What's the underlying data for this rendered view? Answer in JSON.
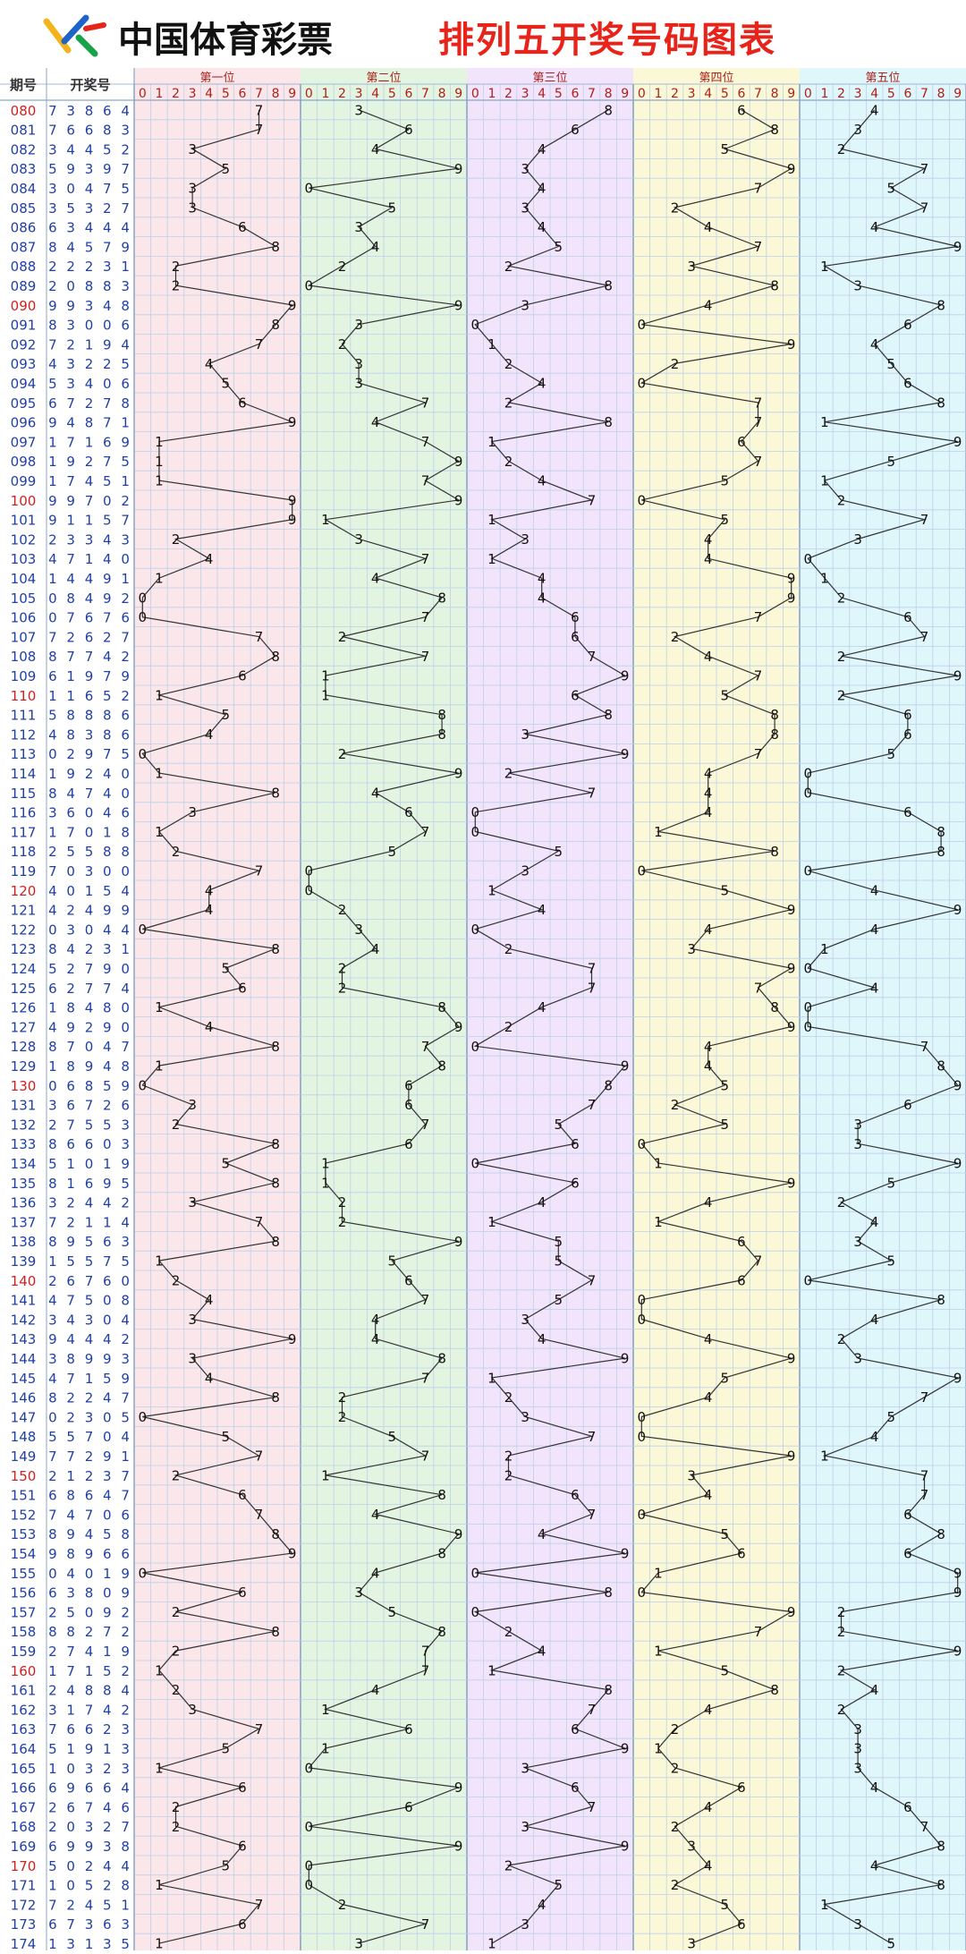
{
  "header": {
    "brand": "中国体育彩票",
    "title": "排列五开奖号码图表"
  },
  "colors": {
    "title_red": "#e8231a",
    "line": "#333333",
    "issue_blue": "#1f3fa6",
    "issue_red": "#d21f1f",
    "grid": "#bcd0e8",
    "section_bgs": [
      "#fbe7ea",
      "#e3f5e1",
      "#f1e4fb",
      "#fbf8d8",
      "#dff6fb"
    ]
  },
  "chart_data": {
    "type": "line",
    "title": "排列五开奖号码图表",
    "col_issue": "期号",
    "col_numbers": "开奖号",
    "digit_header": [
      "0",
      "1",
      "2",
      "3",
      "4",
      "5",
      "6",
      "7",
      "8",
      "9"
    ],
    "series": [
      {
        "name": "第一位"
      },
      {
        "name": "第二位"
      },
      {
        "name": "第三位"
      },
      {
        "name": "第四位"
      },
      {
        "name": "第五位"
      }
    ],
    "issues": [
      "080",
      "081",
      "082",
      "083",
      "084",
      "085",
      "086",
      "087",
      "088",
      "089",
      "090",
      "091",
      "092",
      "093",
      "094",
      "095",
      "096",
      "097",
      "098",
      "099",
      "100",
      "101",
      "102",
      "103",
      "104",
      "105",
      "106",
      "107",
      "108",
      "109",
      "110",
      "111",
      "112",
      "113",
      "114",
      "115",
      "116",
      "117",
      "118",
      "119",
      "120",
      "121",
      "122",
      "123",
      "124",
      "125",
      "126",
      "127",
      "128",
      "129",
      "130",
      "131",
      "132",
      "133",
      "134",
      "135",
      "136",
      "137",
      "138",
      "139",
      "140",
      "141",
      "142",
      "143",
      "144",
      "145",
      "146",
      "147",
      "148",
      "149",
      "150",
      "151",
      "152",
      "153",
      "154",
      "155",
      "156",
      "157",
      "158",
      "159",
      "160",
      "161",
      "162",
      "163",
      "164",
      "165",
      "166",
      "167",
      "168",
      "169",
      "170",
      "171",
      "172",
      "173",
      "174"
    ],
    "draws": [
      "73864",
      "76683",
      "34452",
      "59397",
      "30475",
      "35327",
      "63444",
      "84579",
      "22231",
      "20883",
      "99348",
      "83006",
      "72194",
      "43225",
      "53406",
      "67278",
      "94871",
      "17169",
      "19275",
      "17451",
      "99702",
      "91157",
      "23343",
      "47140",
      "14491",
      "08492",
      "07676",
      "72627",
      "87742",
      "61979",
      "11652",
      "58886",
      "48386",
      "02975",
      "19240",
      "84740",
      "36046",
      "17018",
      "25588",
      "70300",
      "40154",
      "42499",
      "03044",
      "84231",
      "52790",
      "62774",
      "18480",
      "49290",
      "87047",
      "18948",
      "06859",
      "36726",
      "27553",
      "86603",
      "51019",
      "81695",
      "32442",
      "72114",
      "89563",
      "15575",
      "26760",
      "47508",
      "34304",
      "94442",
      "38993",
      "47159",
      "82247",
      "02305",
      "55704",
      "77291",
      "21237",
      "68647",
      "74706",
      "89458",
      "98966",
      "04019",
      "63809",
      "25092",
      "88272",
      "27419",
      "17152",
      "24884",
      "31742",
      "76623",
      "51913",
      "10323",
      "69664",
      "26746",
      "20327",
      "69938",
      "50244",
      "10528",
      "72451",
      "67363",
      "13135"
    ],
    "red_issues": [
      "080",
      "090",
      "100",
      "110",
      "120",
      "130",
      "140",
      "150",
      "160",
      "170"
    ]
  }
}
